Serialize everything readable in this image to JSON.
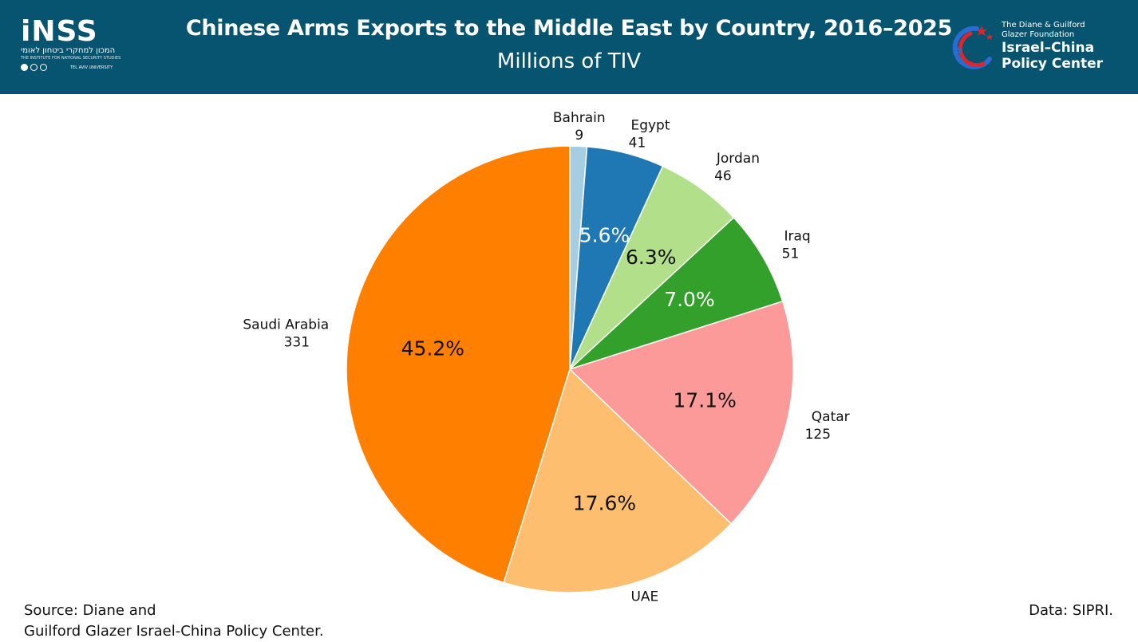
{
  "header": {
    "title": "Chinese Arms Exports to the Middle East by Country, 2016–2025",
    "subtitle": "Millions of TIV",
    "background": "#06546f"
  },
  "logo_left": {
    "word": "iNSS",
    "hebrew": "המכון למחקרי ביטחון לאומי",
    "english": "THE INSTITUTE FOR NATIONAL SECURITY STUDIES",
    "university": "TEL AVIV UNIVERSITY"
  },
  "logo_right": {
    "line1": "The Diane & Guilford",
    "line2": "Glazer Foundation",
    "line3": "Israel–China",
    "line4": "Policy Center",
    "colors": {
      "blue": "#2a6bd1",
      "red": "#e0242b"
    }
  },
  "chart_data": {
    "type": "pie",
    "title": "Chinese Arms Exports to the Middle East by Country, 2016–2025",
    "subtitle": "Millions of TIV",
    "start_angle_deg": 0,
    "direction": "clockwise",
    "slices": [
      {
        "label": "Bahrain",
        "value": 9,
        "pct_label": "",
        "color": "#a6cee3",
        "pct_color": "#000000"
      },
      {
        "label": "Egypt",
        "value": 41,
        "pct_label": "5.6%",
        "color": "#1f78b4",
        "pct_color": "#ffffff"
      },
      {
        "label": "Jordan",
        "value": 46,
        "pct_label": "6.3%",
        "color": "#b2df8a",
        "pct_color": "#111111"
      },
      {
        "label": "Iraq",
        "value": 51,
        "pct_label": "7.0%",
        "color": "#33a02c",
        "pct_color": "#ffffff"
      },
      {
        "label": "Qatar",
        "value": 125,
        "pct_label": "17.1%",
        "color": "#fb9a99",
        "pct_color": "#111111"
      },
      {
        "label": "UAE",
        "value": 129,
        "pct_label": "17.6%",
        "color": "#fdbf6f",
        "pct_color": "#111111"
      },
      {
        "label": "Saudi Arabia",
        "value": 331,
        "pct_label": "45.2%",
        "color": "#ff7f00",
        "pct_color": "#111111"
      }
    ]
  },
  "footer": {
    "source_line1": "Source: Diane and",
    "source_line2": "Guilford Glazer Israel-China Policy Center.",
    "data_source": "Data: SIPRI."
  }
}
